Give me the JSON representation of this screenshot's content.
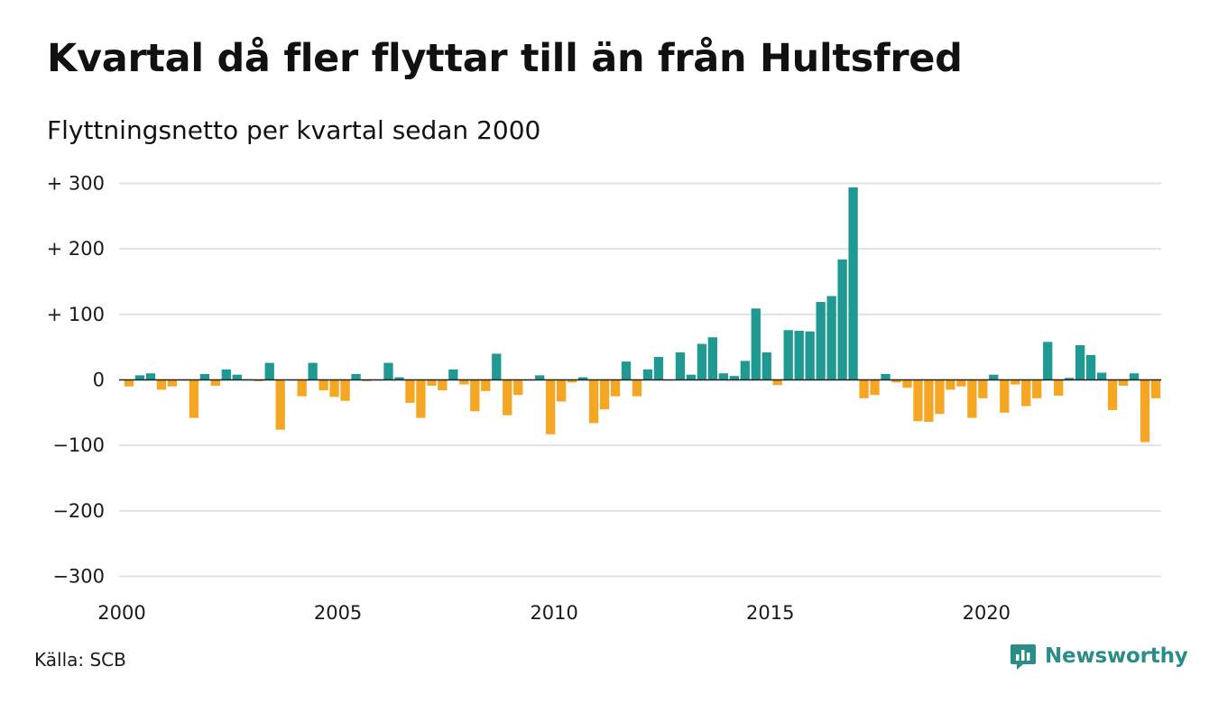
{
  "title": "Kvartal då fler flyttar till än från Hultsfred",
  "subtitle": "Flyttningsnetto per kvartal sedan 2000",
  "source": "Källa: SCB",
  "brand": "Newsworthy",
  "brand_icon": "bar-chart-speech-bubble-icon",
  "colors": {
    "positive": "#1f9a93",
    "negative": "#f5a623",
    "grid": "#e2e2e2",
    "baseline": "#222222",
    "brand": "#2a8d87"
  },
  "chart_data": {
    "type": "bar",
    "title": "Kvartal då fler flyttar till än från Hultsfred",
    "subtitle": "Flyttningsnetto per kvartal sedan 2000",
    "xlabel": "",
    "ylabel": "",
    "ylim": [
      -300,
      300
    ],
    "y_ticks": [
      300,
      200,
      100,
      0,
      -100,
      -200,
      -300
    ],
    "y_tick_labels": [
      "+ 300",
      "+ 200",
      "+ 100",
      "0",
      "−100",
      "−200",
      "−300"
    ],
    "x_tick_labels": [
      "2000",
      "2005",
      "2010",
      "2015",
      "2020"
    ],
    "grid": true,
    "x_start": "2000 Q1",
    "frequency": "quarterly",
    "values": [
      -10,
      7,
      10,
      -15,
      -10,
      -1,
      -58,
      9,
      -9,
      16,
      8,
      1,
      -2,
      26,
      -76,
      0,
      -25,
      26,
      -16,
      -26,
      -32,
      9,
      -2,
      0,
      26,
      4,
      -35,
      -58,
      -9,
      -16,
      16,
      -7,
      -48,
      -17,
      40,
      -54,
      -23,
      0,
      7,
      -83,
      -33,
      -4,
      4,
      -66,
      -45,
      -25,
      28,
      -25,
      16,
      35,
      0,
      42,
      8,
      55,
      65,
      10,
      6,
      29,
      109,
      42,
      -8,
      76,
      75,
      74,
      119,
      128,
      184,
      294,
      -28,
      -23,
      9,
      -4,
      -12,
      -63,
      -64,
      -52,
      -15,
      -10,
      -58,
      -28,
      8,
      -50,
      -7,
      -40,
      -28,
      58,
      -24,
      3,
      53,
      38,
      11,
      -46,
      -9,
      10,
      -95,
      -28
    ]
  }
}
